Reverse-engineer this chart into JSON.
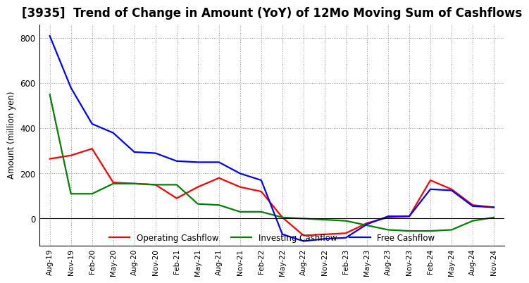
{
  "title": "[3935]  Trend of Change in Amount (YoY) of 12Mo Moving Sum of Cashflows",
  "ylabel": "Amount (million yen)",
  "x_labels": [
    "Aug-19",
    "Nov-19",
    "Feb-20",
    "May-20",
    "Aug-20",
    "Nov-20",
    "Feb-21",
    "May-21",
    "Aug-21",
    "Nov-21",
    "Feb-22",
    "May-22",
    "Aug-22",
    "Nov-22",
    "Feb-23",
    "May-23",
    "Aug-23",
    "Nov-23",
    "Feb-24",
    "May-24",
    "Aug-24",
    "Nov-24"
  ],
  "operating_cashflow": [
    265,
    280,
    310,
    160,
    155,
    150,
    90,
    140,
    180,
    140,
    120,
    5,
    -75,
    -70,
    -65,
    -20,
    5,
    10,
    170,
    130,
    60,
    50
  ],
  "investing_cashflow": [
    550,
    110,
    110,
    155,
    155,
    150,
    150,
    65,
    60,
    30,
    30,
    5,
    0,
    -5,
    -10,
    -30,
    -50,
    -55,
    -55,
    -50,
    -10,
    5
  ],
  "free_cashflow": [
    810,
    580,
    420,
    380,
    295,
    290,
    255,
    250,
    250,
    200,
    170,
    -70,
    -100,
    -90,
    -85,
    -25,
    10,
    10,
    130,
    125,
    55,
    50
  ],
  "operating_color": "#ff0000",
  "investing_color": "#008000",
  "free_color": "#0000ff",
  "ylim_min": -120,
  "ylim_max": 860,
  "yticks": [
    0,
    200,
    400,
    600,
    800
  ],
  "background_color": "#ffffff",
  "grid_color": "#999999",
  "title_fontsize": 12,
  "label_fontsize": 8.5,
  "legend_labels": [
    "Operating Cashflow",
    "Investing Cashflow",
    "Free Cashflow"
  ]
}
